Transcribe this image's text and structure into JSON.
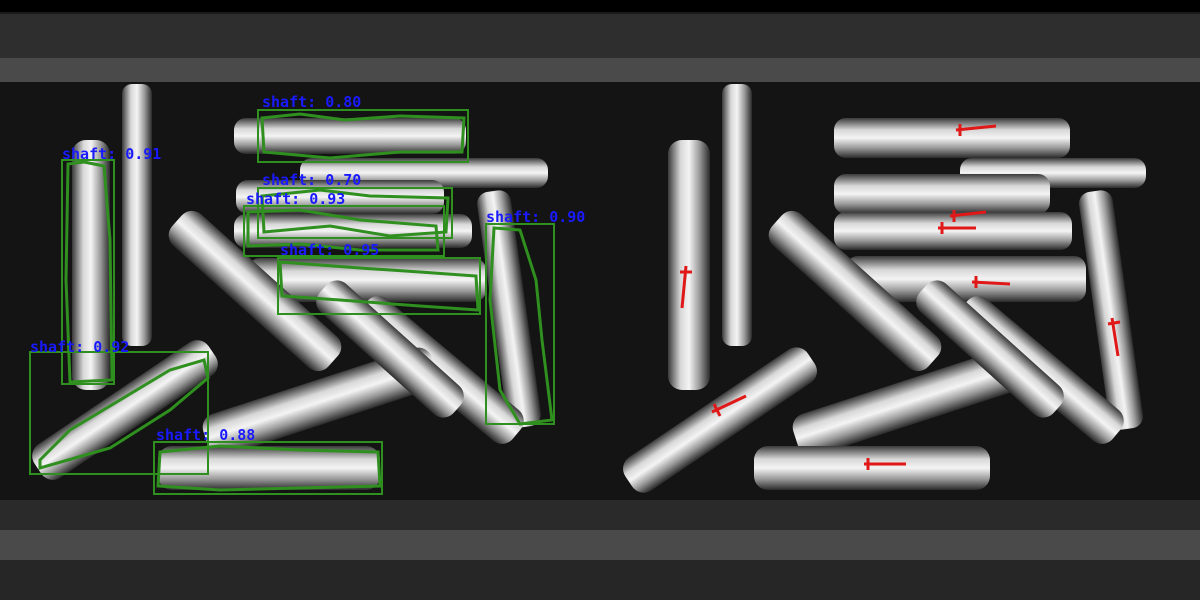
{
  "colors": {
    "box": "#2f8f1f",
    "label": "#1a1aff",
    "marker": "#e01818",
    "metal": "#cfcfcf"
  },
  "left_panel": {
    "detections": [
      {
        "label": "shaft:  0.80",
        "class": "shaft",
        "score": 0.8
      },
      {
        "label": "shaft:  0.91",
        "class": "shaft",
        "score": 0.91
      },
      {
        "label": "shaft:  0.70",
        "class": "shaft",
        "score": 0.7
      },
      {
        "label": "shaft:  0.93",
        "class": "shaft",
        "score": 0.93
      },
      {
        "label": "shaft:  0.95",
        "class": "shaft",
        "score": 0.95
      },
      {
        "label": "shaft:  0.90",
        "class": "shaft",
        "score": 0.9
      },
      {
        "label": "shaft:  0.92",
        "class": "shaft",
        "score": 0.92
      },
      {
        "label": "shaft:  0.88",
        "class": "shaft",
        "score": 0.88
      }
    ]
  },
  "right_panel": {
    "marker_count": 8
  }
}
